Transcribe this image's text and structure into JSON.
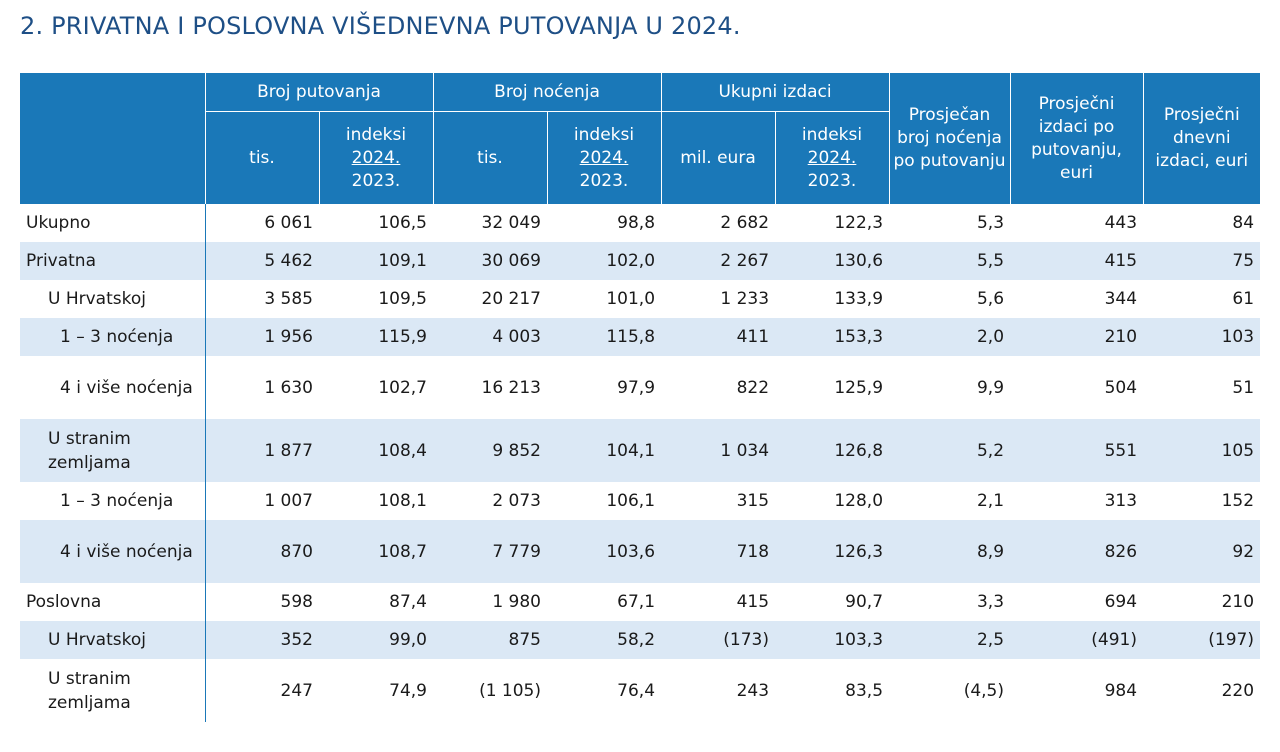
{
  "title": "2. PRIVATNA I POSLOVNA VIŠEDNEVNA PUTOVANJA U 2024.",
  "header": {
    "groups": [
      "Broj putovanja",
      "Broj noćenja",
      "Ukupni izdaci"
    ],
    "sub": {
      "tis": "tis.",
      "mil_eura": "mil. eura",
      "indeksi": "indeksi",
      "year_top": "2024.",
      "year_bottom": "2023."
    },
    "avg_nights": "Prosječan broj noćenja po putovanju",
    "avg_spend_trip": "Prosječni izdaci po putovanju, euri",
    "avg_spend_day": "Prosječni dnevni izdaci, euri"
  },
  "rows": [
    {
      "label": "Ukupno",
      "values": [
        "6 061",
        "106,5",
        "32 049",
        "98,8",
        "2 682",
        "122,3",
        "5,3",
        "443",
        "84"
      ]
    },
    {
      "label": "Privatna",
      "values": [
        "5 462",
        "109,1",
        "30 069",
        "102,0",
        "2 267",
        "130,6",
        "5,5",
        "415",
        "75"
      ]
    },
    {
      "label": "U Hrvatskoj",
      "values": [
        "3 585",
        "109,5",
        "20 217",
        "101,0",
        "1 233",
        "133,9",
        "5,6",
        "344",
        "61"
      ]
    },
    {
      "label": "1 – 3 noćenja",
      "values": [
        "1 956",
        "115,9",
        "4 003",
        "115,8",
        "411",
        "153,3",
        "2,0",
        "210",
        "103"
      ]
    },
    {
      "label": "4 i više noćenja",
      "values": [
        "1 630",
        "102,7",
        "16 213",
        "97,9",
        "822",
        "125,9",
        "9,9",
        "504",
        "51"
      ]
    },
    {
      "label": "U stranim zemljama",
      "values": [
        "1 877",
        "108,4",
        "9 852",
        "104,1",
        "1 034",
        "126,8",
        "5,2",
        "551",
        "105"
      ]
    },
    {
      "label": "1 – 3 noćenja",
      "values": [
        "1 007",
        "108,1",
        "2 073",
        "106,1",
        "315",
        "128,0",
        "2,1",
        "313",
        "152"
      ]
    },
    {
      "label": "4 i više noćenja",
      "values": [
        "870",
        "108,7",
        "7 779",
        "103,6",
        "718",
        "126,3",
        "8,9",
        "826",
        "92"
      ]
    },
    {
      "label": "Poslovna",
      "values": [
        "598",
        "87,4",
        "1 980",
        "67,1",
        "415",
        "90,7",
        "3,3",
        "694",
        "210"
      ]
    },
    {
      "label": "U Hrvatskoj",
      "values": [
        "352",
        "99,0",
        "875",
        "58,2",
        "(173)",
        "103,3",
        "2,5",
        "(491)",
        "(197)"
      ]
    },
    {
      "label": "U stranim zemljama",
      "values": [
        "247",
        "74,9",
        "(1 105)",
        "76,4",
        "243",
        "83,5",
        "(4,5)",
        "984",
        "220"
      ]
    }
  ],
  "colors": {
    "header_bg": "#1a78b8",
    "title": "#1e4f86",
    "row_shade": "#dbe8f5"
  }
}
